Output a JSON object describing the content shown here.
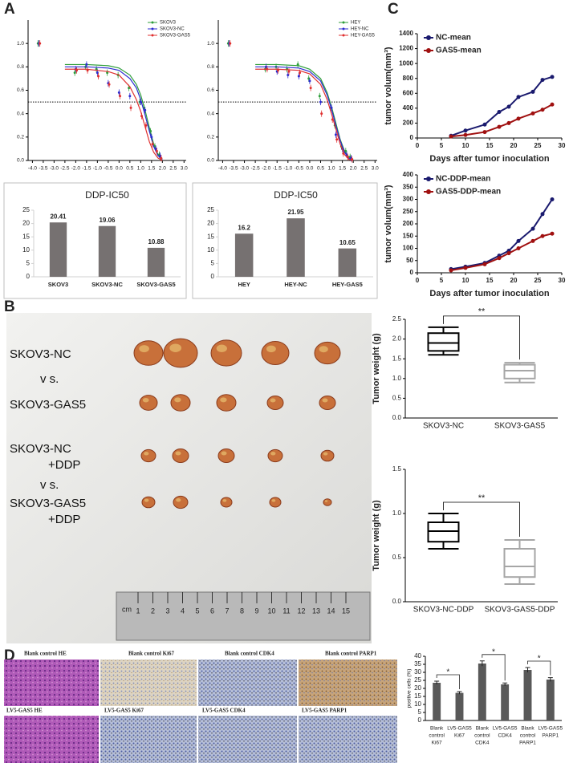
{
  "figure": {
    "panel_labels": [
      "A",
      "B",
      "C",
      "D"
    ],
    "photo_labels": [
      [
        "SKOV3-NC"
      ],
      [
        "v s."
      ],
      [
        "SKOV3-GAS5"
      ],
      [
        "SKOV3-NC",
        "+DDP"
      ],
      [
        "v s."
      ],
      [
        "SKOV3-GAS5",
        "+DDP"
      ]
    ],
    "ruler_unit": "cm",
    "ruler_numbers": [
      1,
      2,
      3,
      4,
      5,
      6,
      7,
      8,
      9,
      10,
      11,
      12,
      13,
      14,
      15
    ],
    "histology_labels": [
      "Blank control HE",
      "Blank control  Ki67",
      "Blank control  CDK4",
      "Blank control  PARP1",
      "LV5-GAS5 HE",
      "LV5-GAS5 Ki67",
      "LV5-GAS5 CDK4",
      "LV5-GAS5 PARP1"
    ]
  },
  "chart_data": [
    {
      "type": "scatter",
      "legend": "upper right",
      "reference_line": 0.5,
      "xlim": [
        -4.2,
        3.1
      ],
      "ylim": [
        0,
        1.2
      ],
      "xticks": [
        {
          "value": -4,
          "label": "-4.0"
        },
        -3.5,
        {
          "value": -3,
          "label": "-3.0"
        },
        -2.5,
        {
          "value": -2,
          "label": "-2.0"
        },
        -1.5,
        {
          "value": -1,
          "label": "-1.0"
        },
        -0.5,
        {
          "value": 0,
          "label": "0.0"
        },
        0.5,
        {
          "value": 1,
          "label": "1.0"
        },
        1.5,
        {
          "value": 2,
          "label": "2.0"
        },
        2.5,
        {
          "value": 3,
          "label": "3.0"
        }
      ],
      "yticks": [
        {
          "value": 0,
          "label": "0.0"
        },
        0.2,
        0.4,
        0.6,
        0.8,
        {
          "value": 1,
          "label": "1.0"
        }
      ],
      "series": [
        {
          "name": "SKOV3",
          "color": "#2e9e3a",
          "x": [
            -3.7,
            -2.0,
            -1.5,
            -1.0,
            -0.5,
            0.0,
            0.5,
            1.0,
            1.2,
            1.5,
            1.7,
            1.9
          ],
          "values": [
            1.0,
            0.75,
            0.8,
            0.78,
            0.75,
            0.73,
            0.62,
            0.5,
            0.45,
            0.25,
            0.12,
            0.05
          ],
          "fit_x": [
            -2.5,
            -1.5,
            -0.5,
            0.0,
            0.5,
            0.8,
            1.0,
            1.2,
            1.4,
            1.6,
            1.8,
            2.0
          ],
          "fit_values": [
            0.82,
            0.82,
            0.81,
            0.79,
            0.73,
            0.65,
            0.56,
            0.43,
            0.28,
            0.14,
            0.05,
            0.01
          ]
        },
        {
          "name": "SKOV3-NC",
          "color": "#2b2bd0",
          "x": [
            -3.7,
            -2.0,
            -1.5,
            -1.0,
            -0.5,
            0.0,
            0.5,
            1.0,
            1.2,
            1.5,
            1.7,
            1.9
          ],
          "values": [
            1.0,
            0.78,
            0.82,
            0.75,
            0.66,
            0.58,
            0.55,
            0.5,
            0.43,
            0.2,
            0.1,
            0.04
          ],
          "fit_x": [
            -2.5,
            -1.5,
            -0.5,
            0.0,
            0.5,
            0.8,
            1.0,
            1.2,
            1.4,
            1.6,
            1.8,
            2.0
          ],
          "fit_values": [
            0.8,
            0.8,
            0.79,
            0.77,
            0.7,
            0.62,
            0.52,
            0.39,
            0.25,
            0.12,
            0.04,
            0.01
          ]
        },
        {
          "name": "SKOV3-GAS5",
          "color": "#e03030",
          "x": [
            -3.7,
            -2.0,
            -1.5,
            -1.0,
            -0.5,
            0.0,
            0.5,
            1.0,
            1.2,
            1.5,
            1.7,
            1.9
          ],
          "values": [
            1.0,
            0.77,
            0.77,
            0.72,
            0.65,
            0.55,
            0.45,
            0.38,
            0.3,
            0.14,
            0.08,
            0.02
          ],
          "fit_x": [
            -2.5,
            -1.5,
            -0.5,
            0.0,
            0.5,
            0.8,
            1.0,
            1.2,
            1.4,
            1.6,
            1.8,
            2.0
          ],
          "fit_values": [
            0.78,
            0.78,
            0.76,
            0.73,
            0.63,
            0.52,
            0.42,
            0.29,
            0.16,
            0.07,
            0.02,
            0.0
          ]
        }
      ]
    },
    {
      "type": "scatter",
      "legend": "upper right",
      "reference_line": 0.5,
      "xlim": [
        -4.2,
        3.1
      ],
      "ylim": [
        0,
        1.2
      ],
      "xticks": [
        {
          "value": -4,
          "label": "-4.0"
        },
        -3.5,
        {
          "value": -3,
          "label": "-3.0"
        },
        -2.5,
        {
          "value": -2,
          "label": "-2.0"
        },
        -1.5,
        {
          "value": -1,
          "label": "-1.0"
        },
        -0.5,
        {
          "value": 0,
          "label": "0.0"
        },
        0.5,
        {
          "value": 1,
          "label": "1.0"
        },
        1.5,
        {
          "value": 2,
          "label": "2.0"
        },
        2.5,
        {
          "value": 3,
          "label": "3.0"
        }
      ],
      "yticks": [
        {
          "value": 0,
          "label": "0.0"
        },
        0.2,
        0.4,
        0.6,
        0.8,
        {
          "value": 1,
          "label": "1.0"
        }
      ],
      "series": [
        {
          "name": "HEY",
          "color": "#2e9e3a",
          "x": [
            -3.7,
            -2.0,
            -1.5,
            -1.0,
            -0.5,
            0.0,
            0.5,
            1.0,
            1.2,
            1.5,
            1.7,
            1.9
          ],
          "values": [
            1.0,
            0.78,
            0.8,
            0.78,
            0.82,
            0.7,
            0.55,
            0.45,
            0.3,
            0.12,
            0.08,
            0.03
          ],
          "fit_x": [
            -2.5,
            -1.5,
            -0.5,
            0.0,
            0.5,
            0.8,
            1.0,
            1.2,
            1.4,
            1.6,
            1.8,
            2.0
          ],
          "fit_values": [
            0.82,
            0.82,
            0.81,
            0.78,
            0.7,
            0.58,
            0.46,
            0.32,
            0.18,
            0.08,
            0.03,
            0.01
          ]
        },
        {
          "name": "HEY-NC",
          "color": "#2b2bd0",
          "x": [
            -3.7,
            -2.0,
            -1.5,
            -1.0,
            -0.5,
            0.0,
            0.5,
            1.0,
            1.2,
            1.5,
            1.7,
            1.9
          ],
          "values": [
            1.0,
            0.8,
            0.76,
            0.73,
            0.72,
            0.68,
            0.5,
            0.45,
            0.22,
            0.1,
            0.05,
            0.02
          ],
          "fit_x": [
            -2.5,
            -1.5,
            -0.5,
            0.0,
            0.5,
            0.8,
            1.0,
            1.2,
            1.4,
            1.6,
            1.8,
            2.0
          ],
          "fit_values": [
            0.8,
            0.8,
            0.79,
            0.76,
            0.68,
            0.56,
            0.44,
            0.3,
            0.17,
            0.07,
            0.02,
            0.0
          ]
        },
        {
          "name": "HEY-GAS5",
          "color": "#e03030",
          "x": [
            -3.7,
            -2.0,
            -1.5,
            -1.0,
            -0.5,
            0.0,
            0.5,
            1.0,
            1.2,
            1.5,
            1.7,
            1.9
          ],
          "values": [
            1.0,
            0.78,
            0.77,
            0.76,
            0.75,
            0.62,
            0.4,
            0.35,
            0.18,
            0.06,
            0.03,
            0.01
          ],
          "fit_x": [
            -2.5,
            -1.5,
            -0.5,
            0.0,
            0.5,
            0.8,
            1.0,
            1.2,
            1.4,
            1.6,
            1.8,
            2.0
          ],
          "fit_values": [
            0.78,
            0.78,
            0.77,
            0.74,
            0.65,
            0.52,
            0.4,
            0.27,
            0.14,
            0.05,
            0.01,
            0.0
          ]
        }
      ]
    },
    {
      "type": "bar",
      "title": "DDP-IC50",
      "color": "#767171",
      "categories": [
        "SKOV3",
        "SKOV3-NC",
        "SKOV3-GAS5"
      ],
      "values": [
        20.41,
        19.06,
        10.88
      ],
      "ylim": [
        0,
        25
      ],
      "yticks": [
        0,
        5,
        10,
        15,
        20,
        25
      ]
    },
    {
      "type": "bar",
      "title": "DDP-IC50",
      "color": "#767171",
      "categories": [
        "HEY",
        "HEY-NC",
        "HEY-GAS5"
      ],
      "values": [
        16.2,
        21.95,
        10.65
      ],
      "ylim": [
        0,
        25
      ],
      "yticks": [
        0,
        5,
        10,
        15,
        20,
        25
      ]
    },
    {
      "type": "line",
      "legend": "upper left",
      "x_label": "Days after tumor inoculation",
      "y_label": "tumor volum(mm³)",
      "xlim": [
        0,
        30
      ],
      "ylim": [
        0,
        1400
      ],
      "xticks": [
        0,
        5,
        10,
        15,
        20,
        25,
        30
      ],
      "yticks": [
        0,
        200,
        400,
        600,
        800,
        1000,
        1200,
        1400
      ],
      "series": [
        {
          "name": "NC-mean",
          "color": "#1a1a6e",
          "x": [
            7,
            10,
            14,
            17,
            19,
            21,
            24,
            26,
            28
          ],
          "values": [
            30,
            100,
            180,
            350,
            420,
            550,
            620,
            780,
            820
          ]
        },
        {
          "name": "GAS5-mean",
          "color": "#a01010",
          "x": [
            7,
            10,
            14,
            17,
            19,
            21,
            24,
            26,
            28
          ],
          "values": [
            20,
            40,
            80,
            150,
            200,
            260,
            330,
            380,
            450
          ]
        }
      ]
    },
    {
      "type": "line",
      "legend": "upper left",
      "x_label": "Days after tumor inoculation",
      "y_label": "tumor volum(mm³)",
      "xlim": [
        0,
        30
      ],
      "ylim": [
        0,
        400
      ],
      "xticks": [
        0,
        5,
        10,
        15,
        20,
        25,
        30
      ],
      "yticks": [
        0,
        50,
        100,
        150,
        200,
        250,
        300,
        350,
        400
      ],
      "series": [
        {
          "name": "NC-DDP-mean",
          "color": "#1a1a6e",
          "x": [
            7,
            10,
            14,
            17,
            19,
            21,
            24,
            26,
            28
          ],
          "values": [
            15,
            25,
            40,
            70,
            90,
            130,
            180,
            240,
            300
          ]
        },
        {
          "name": "GAS5-DDP-mean",
          "color": "#a01010",
          "x": [
            7,
            10,
            14,
            17,
            19,
            21,
            24,
            26,
            28
          ],
          "values": [
            10,
            20,
            35,
            60,
            80,
            100,
            130,
            150,
            160
          ]
        }
      ]
    },
    {
      "type": "box",
      "y_label": "Tumor weight (g)",
      "annotation": "**",
      "categories": [
        "SKOV3-NC",
        "SKOV3-GAS5"
      ],
      "colors": [
        "#000000",
        "#a6a6a6"
      ],
      "boxes": [
        {
          "min": 1.6,
          "q1": 1.7,
          "median": 1.9,
          "q3": 2.15,
          "max": 2.3
        },
        {
          "min": 0.9,
          "q1": 1.0,
          "median": 1.2,
          "q3": 1.35,
          "max": 1.4
        }
      ],
      "ylim": [
        0,
        2.5
      ],
      "yticks": [
        {
          "value": 0,
          "label": "0.0"
        },
        0.5,
        {
          "value": 1,
          "label": "1.0"
        },
        1.5,
        {
          "value": 2,
          "label": "2.0"
        },
        2.5
      ]
    },
    {
      "type": "box",
      "y_label": "Tumor weight (g)",
      "annotation": "**",
      "categories": [
        "SKOV3-NC-DDP",
        "SKOV3-GAS5-DDP"
      ],
      "colors": [
        "#000000",
        "#a6a6a6"
      ],
      "boxes": [
        {
          "min": 0.6,
          "q1": 0.68,
          "median": 0.8,
          "q3": 0.9,
          "max": 1.0
        },
        {
          "min": 0.2,
          "q1": 0.28,
          "median": 0.4,
          "q3": 0.6,
          "max": 0.7
        }
      ],
      "ylim": [
        0,
        1.5
      ],
      "yticks": [
        {
          "value": 0,
          "label": "0.0"
        },
        0.5,
        {
          "value": 1,
          "label": "1.0"
        },
        1.5
      ]
    },
    {
      "type": "bar",
      "y_label": "positive cells (%)",
      "color": "#595959",
      "categories": [
        [
          "Blank",
          "control",
          "Ki67"
        ],
        [
          "LV5-GAS5",
          "Ki67"
        ],
        [
          "Blank",
          "control",
          "CDK4"
        ],
        [
          "LV5-GAS5",
          "CDK4"
        ],
        [
          "Blank",
          "control",
          "PARP1"
        ],
        [
          "LV5-GAS5",
          "PARP1"
        ]
      ],
      "values": [
        23.5,
        17.2,
        35.5,
        22.5,
        31.5,
        25.5
      ],
      "errors": [
        1.0,
        0.8,
        1.6,
        0.9,
        1.5,
        1.2
      ],
      "annotations": [
        "*",
        "*",
        "*"
      ],
      "ylim": [
        0,
        40
      ],
      "yticks": [
        0,
        5,
        10,
        15,
        20,
        25,
        30,
        35,
        40
      ]
    }
  ]
}
